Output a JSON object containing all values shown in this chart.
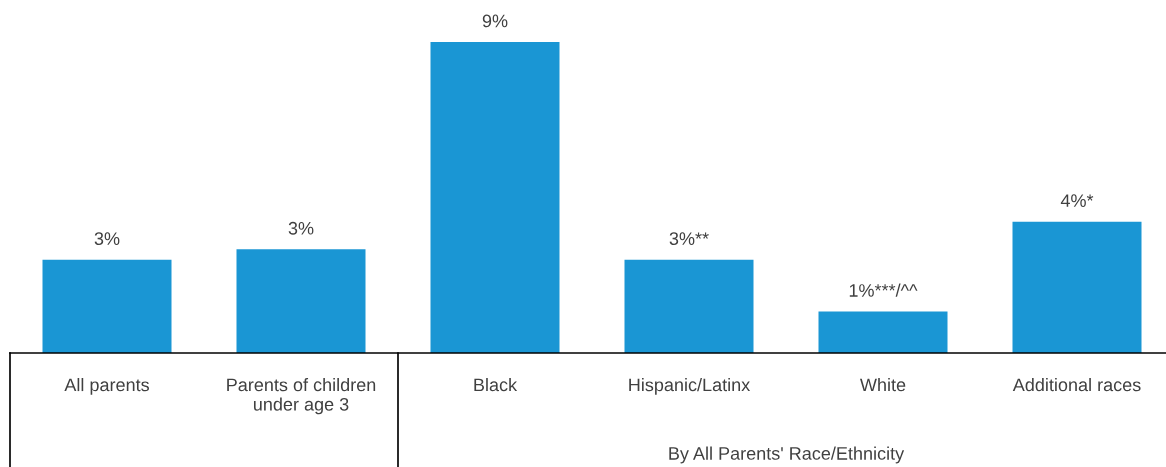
{
  "chart_data": {
    "type": "bar",
    "categories": [
      "All parents",
      "Parents of children\nunder age 3",
      "Black",
      "Hispanic/Latinx",
      "White",
      "Additional races"
    ],
    "values": [
      2.7,
      3.0,
      9.0,
      2.7,
      1.2,
      3.8
    ],
    "value_labels": [
      "3%",
      "3%",
      "9%",
      "3%**",
      "1%***/^^",
      "4%*"
    ],
    "color": "#1a96d4",
    "grid": false,
    "legend": false,
    "annotations": [
      "By All Parents' Race/Ethnicity"
    ]
  }
}
